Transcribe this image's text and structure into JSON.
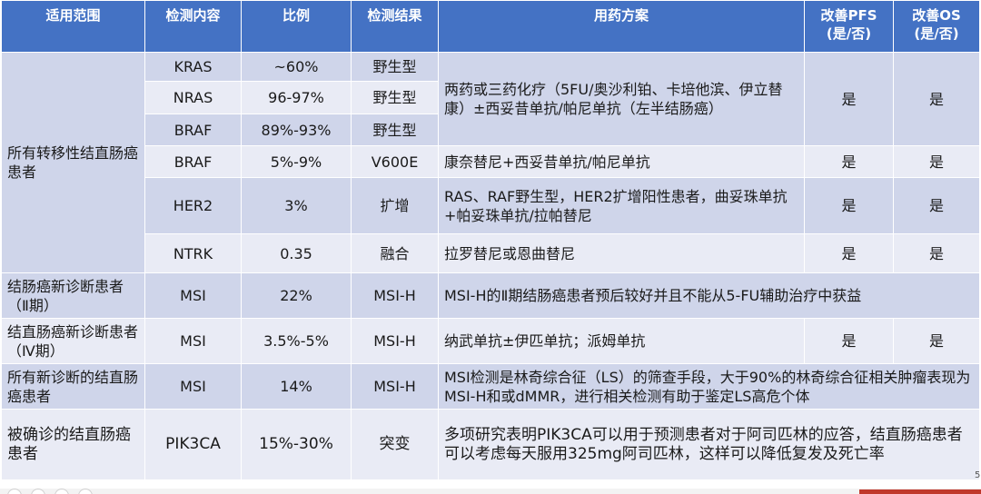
{
  "table": {
    "headers": [
      "适用范围",
      "检测内容",
      "比例",
      "检测结果",
      "用药方案",
      "改善PFS\n(是/否)",
      "改善OS\n(是/否)"
    ],
    "group_metastatic": {
      "scope": "所有转移性结直肠癌患者",
      "rows": [
        {
          "test": "KRAS",
          "ratio": "~60%",
          "result": "野生型"
        },
        {
          "test": "NRAS",
          "ratio": "96-97%",
          "result": "野生型"
        },
        {
          "test": "BRAF",
          "ratio": "89%-93%",
          "result": "野生型"
        }
      ],
      "shared_plan": "两药或三药化疗（5FU/奥沙利铂、卡培他滨、伊立替康）±西妥昔单抗/帕尼单抗（左半结肠癌）",
      "shared_pfs": "是",
      "shared_os": "是",
      "rows2": [
        {
          "test": "BRAF",
          "ratio": "5%-9%",
          "result": "V600E",
          "plan": "康奈替尼+西妥昔单抗/帕尼单抗",
          "pfs": "是",
          "os": "是"
        },
        {
          "test": "HER2",
          "ratio": "3%",
          "result": "扩增",
          "plan": "RAS、RAF野生型，HER2扩增阳性患者，曲妥珠单抗+帕妥珠单抗/拉帕替尼",
          "pfs": "是",
          "os": "是"
        },
        {
          "test": "NTRK",
          "ratio": "0.35",
          "result": "融合",
          "plan": "拉罗替尼或恩曲替尼",
          "pfs": "是",
          "os": "是"
        }
      ]
    },
    "rows_other": [
      {
        "scope": "结肠癌新诊断患者（Ⅱ期）",
        "test": "MSI",
        "ratio": "22%",
        "result": "MSI-H",
        "plan": "MSI-H的Ⅱ期结肠癌患者预后较好并且不能从5-FU辅助治疗中获益",
        "pfs": "",
        "os": ""
      },
      {
        "scope": "结直肠癌新诊断患者（Ⅳ期）",
        "test": "MSI",
        "ratio": "3.5%-5%",
        "result": "MSI-H",
        "plan": "纳武单抗±伊匹单抗；派姆单抗",
        "pfs": "是",
        "os": "是"
      },
      {
        "scope": "所有新诊断的结直肠癌患者",
        "test": "MSI",
        "ratio": "14%",
        "result": "MSI-H",
        "plan": "MSI检测是林奇综合征（LS）的筛查手段，大于90%的林奇综合征相关肿瘤表现为MSI-H和或dMMR，进行相关检测有助于鉴定LS高危个体",
        "pfs": "",
        "os": ""
      },
      {
        "scope": "被确诊的结直肠癌患者",
        "test": "PIK3CA",
        "ratio": "15%-30%",
        "result": "突变",
        "plan": "多项研究表明PIK3CA可以用于预测患者对于阿司匹林的应答，结直肠癌患者可以考虑每天服用325mg阿司匹林，这样可以降低复发及死亡率",
        "pfs": "",
        "os": ""
      }
    ]
  },
  "colors": {
    "header_bg": "#4472c4",
    "row_dark": "#cfd5ea",
    "row_light": "#e9ebf5"
  },
  "page_mark": "5"
}
